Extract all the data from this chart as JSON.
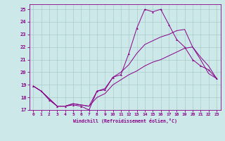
{
  "xlabel": "Windchill (Refroidissement éolien,°C)",
  "xlim": [
    -0.5,
    23.5
  ],
  "ylim": [
    17,
    25.4
  ],
  "yticks": [
    17,
    18,
    19,
    20,
    21,
    22,
    23,
    24,
    25
  ],
  "xticks": [
    0,
    1,
    2,
    3,
    4,
    5,
    6,
    7,
    8,
    9,
    10,
    11,
    12,
    13,
    14,
    15,
    16,
    17,
    18,
    19,
    20,
    21,
    22,
    23
  ],
  "bg_color": "#cce8e8",
  "grid_color": "#aacccc",
  "line_color": "#880088",
  "line1_x": [
    0,
    1,
    2,
    3,
    4,
    5,
    6,
    7,
    8,
    9,
    10,
    11,
    12,
    13,
    14,
    15,
    16,
    17,
    18,
    19,
    20,
    21,
    22,
    23
  ],
  "line1_y": [
    18.9,
    18.5,
    17.8,
    17.3,
    17.3,
    17.4,
    17.3,
    17.0,
    18.5,
    18.6,
    19.6,
    19.8,
    21.5,
    23.5,
    25.0,
    24.8,
    25.0,
    23.8,
    22.6,
    22.0,
    21.0,
    20.5,
    20.2,
    19.5
  ],
  "line2_x": [
    0,
    1,
    2,
    3,
    4,
    5,
    6,
    7,
    8,
    9,
    10,
    11,
    12,
    13,
    14,
    15,
    16,
    17,
    18,
    19,
    20,
    21,
    22,
    23
  ],
  "line2_y": [
    18.9,
    18.5,
    17.9,
    17.3,
    17.3,
    17.5,
    17.4,
    17.3,
    18.5,
    18.7,
    19.6,
    20.0,
    20.6,
    21.5,
    22.2,
    22.5,
    22.8,
    23.0,
    23.3,
    23.4,
    22.0,
    21.2,
    20.5,
    19.5
  ],
  "line3_x": [
    0,
    1,
    2,
    3,
    4,
    5,
    6,
    7,
    8,
    9,
    10,
    11,
    12,
    13,
    14,
    15,
    16,
    17,
    18,
    19,
    20,
    21,
    22,
    23
  ],
  "line3_y": [
    18.9,
    18.5,
    17.9,
    17.3,
    17.3,
    17.5,
    17.4,
    17.3,
    18.0,
    18.3,
    19.0,
    19.4,
    19.8,
    20.1,
    20.5,
    20.8,
    21.0,
    21.3,
    21.6,
    21.9,
    22.0,
    21.0,
    19.9,
    19.5
  ]
}
